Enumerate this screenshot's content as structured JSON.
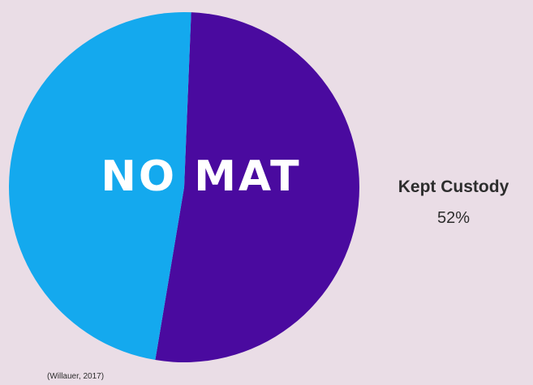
{
  "chart_data": {
    "type": "pie",
    "title": "",
    "center_label": "NO MAT",
    "slices": [
      {
        "name": "Kept Custody",
        "value": 52,
        "value_label": "52%",
        "color": "#4a0a9f"
      },
      {
        "name": "",
        "value": 48,
        "color": "#14a9ee"
      }
    ],
    "legend_placement": "right",
    "source": "(Willauer, 2017)"
  },
  "colors": {
    "background": "#eadde6",
    "text": "#2d2d2d",
    "center_label": "#ffffff"
  }
}
